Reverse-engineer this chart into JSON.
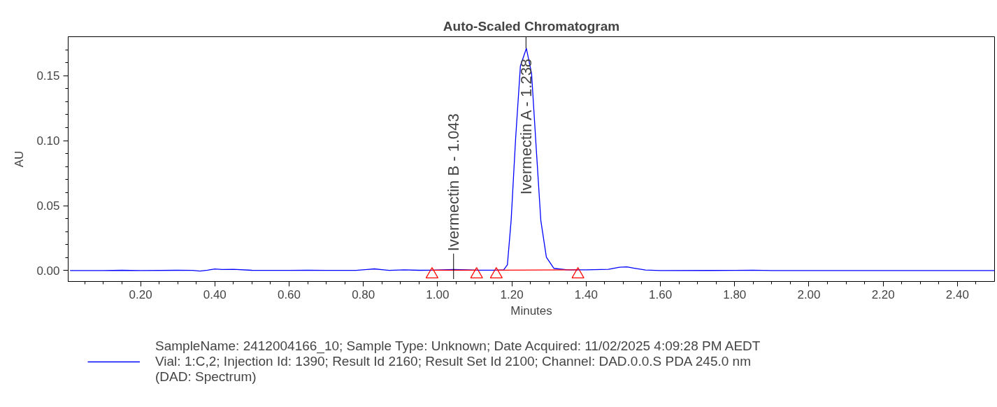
{
  "chart_data": {
    "type": "line",
    "title": "Auto-Scaled Chromatogram",
    "xlabel": "Minutes",
    "ylabel": "AU",
    "xlim": [
      0.005,
      2.5
    ],
    "ylim": [
      -0.0084,
      0.18
    ],
    "xticks": [
      {
        "value": 0.05,
        "label": null
      },
      {
        "value": 0.1,
        "label": null
      },
      {
        "value": 0.15,
        "label": null
      },
      {
        "value": 0.2,
        "label": "0.20"
      },
      {
        "value": 0.25,
        "label": null
      },
      {
        "value": 0.3,
        "label": null
      },
      {
        "value": 0.35,
        "label": null
      },
      {
        "value": 0.4,
        "label": "0.40"
      },
      {
        "value": 0.45,
        "label": null
      },
      {
        "value": 0.5,
        "label": null
      },
      {
        "value": 0.55,
        "label": null
      },
      {
        "value": 0.6,
        "label": "0.60"
      },
      {
        "value": 0.65,
        "label": null
      },
      {
        "value": 0.7,
        "label": null
      },
      {
        "value": 0.75,
        "label": null
      },
      {
        "value": 0.8,
        "label": "0.80"
      },
      {
        "value": 0.85,
        "label": null
      },
      {
        "value": 0.9,
        "label": null
      },
      {
        "value": 0.95,
        "label": null
      },
      {
        "value": 1.0,
        "label": "1.00"
      },
      {
        "value": 1.05,
        "label": null
      },
      {
        "value": 1.1,
        "label": null
      },
      {
        "value": 1.15,
        "label": null
      },
      {
        "value": 1.2,
        "label": "1.20"
      },
      {
        "value": 1.25,
        "label": null
      },
      {
        "value": 1.3,
        "label": null
      },
      {
        "value": 1.35,
        "label": null
      },
      {
        "value": 1.4,
        "label": "1.40"
      },
      {
        "value": 1.45,
        "label": null
      },
      {
        "value": 1.5,
        "label": null
      },
      {
        "value": 1.55,
        "label": null
      },
      {
        "value": 1.6,
        "label": "1.60"
      },
      {
        "value": 1.65,
        "label": null
      },
      {
        "value": 1.7,
        "label": null
      },
      {
        "value": 1.75,
        "label": null
      },
      {
        "value": 1.8,
        "label": "1.80"
      },
      {
        "value": 1.85,
        "label": null
      },
      {
        "value": 1.9,
        "label": null
      },
      {
        "value": 1.95,
        "label": null
      },
      {
        "value": 2.0,
        "label": "2.00"
      },
      {
        "value": 2.05,
        "label": null
      },
      {
        "value": 2.1,
        "label": null
      },
      {
        "value": 2.15,
        "label": null
      },
      {
        "value": 2.2,
        "label": "2.20"
      },
      {
        "value": 2.25,
        "label": null
      },
      {
        "value": 2.3,
        "label": null
      },
      {
        "value": 2.35,
        "label": null
      },
      {
        "value": 2.4,
        "label": "2.40"
      },
      {
        "value": 2.45,
        "label": null
      }
    ],
    "yticks": [
      {
        "value": 0.0,
        "label": "0.00"
      },
      {
        "value": 0.01,
        "label": null
      },
      {
        "value": 0.02,
        "label": null
      },
      {
        "value": 0.03,
        "label": null
      },
      {
        "value": 0.04,
        "label": null
      },
      {
        "value": 0.05,
        "label": "0.05"
      },
      {
        "value": 0.06,
        "label": null
      },
      {
        "value": 0.07,
        "label": null
      },
      {
        "value": 0.08,
        "label": null
      },
      {
        "value": 0.09,
        "label": null
      },
      {
        "value": 0.1,
        "label": "0.10"
      },
      {
        "value": 0.11,
        "label": null
      },
      {
        "value": 0.12,
        "label": null
      },
      {
        "value": 0.13,
        "label": null
      },
      {
        "value": 0.14,
        "label": null
      },
      {
        "value": 0.15,
        "label": "0.15"
      },
      {
        "value": 0.16,
        "label": null
      },
      {
        "value": 0.17,
        "label": null
      }
    ],
    "grid": false,
    "legend": "bottom",
    "annotations": [
      {
        "text": "Ivermectin B - 1.043",
        "x": 1.043,
        "y": 0.0008
      },
      {
        "text": "Ivermectin A - 1.238",
        "x": 1.238,
        "y": 0.171
      }
    ],
    "series": [
      {
        "name": "SampleName: 2412004166_10; Sample Type: Unknown; Date Acquired: 11/02/2025 4:09:28 PM AEDT\nVial: 1:C,2; Injection Id: 1390; Result Id 2160; Result Set Id 2100; Channel: DAD.0.0.S PDA 245.0 nm\n(DAD: Spectrum)",
        "color": "#0000ff",
        "marker": "none",
        "line_style": "solid",
        "x": [
          0.01,
          0.1,
          0.15,
          0.2,
          0.3,
          0.34,
          0.36,
          0.38,
          0.4,
          0.42,
          0.45,
          0.5,
          0.6,
          0.65,
          0.7,
          0.78,
          0.81,
          0.83,
          0.85,
          0.87,
          0.91,
          0.95,
          0.985,
          1.043,
          1.08,
          1.105,
          1.158,
          1.178,
          1.188,
          1.198,
          1.21,
          1.223,
          1.239,
          1.253,
          1.266,
          1.278,
          1.293,
          1.313,
          1.35,
          1.4,
          1.46,
          1.49,
          1.51,
          1.53,
          1.56,
          1.6,
          1.8,
          1.85,
          1.9,
          2.2,
          2.5
        ],
        "values": [
          0.0,
          0.0,
          0.0002,
          0.0,
          0.0002,
          0.0001,
          -0.0004,
          0.0003,
          0.0012,
          0.0008,
          0.0009,
          0.0002,
          0.0001,
          0.0003,
          0.0001,
          0.0001,
          0.0008,
          0.0013,
          0.0007,
          0.0001,
          0.0005,
          0.0002,
          0.0003,
          0.0008,
          0.0005,
          0.0003,
          0.0003,
          0.0006,
          0.0045,
          0.0385,
          0.101,
          0.1575,
          0.171,
          0.152,
          0.0924,
          0.0385,
          0.0102,
          0.0017,
          0.0006,
          0.0005,
          0.0009,
          0.0026,
          0.0028,
          0.0018,
          0.0004,
          0.0,
          0.0001,
          0.0003,
          0.0,
          0.0,
          0.0
        ]
      },
      {
        "color": "#ff0000",
        "marker": "none",
        "line_style": "solid",
        "x": [
          0.985,
          1.105,
          1.13,
          1.158,
          1.378
        ],
        "values": [
          0.0003,
          0.0003,
          null,
          0.0003,
          0.0005
        ]
      },
      {
        "color": "#ff0000",
        "type": "scatter",
        "marker": "triangle",
        "x": [
          0.985,
          1.105,
          1.158,
          1.378
        ],
        "values": [
          -0.003,
          -0.003,
          -0.003,
          -0.003
        ]
      }
    ]
  }
}
